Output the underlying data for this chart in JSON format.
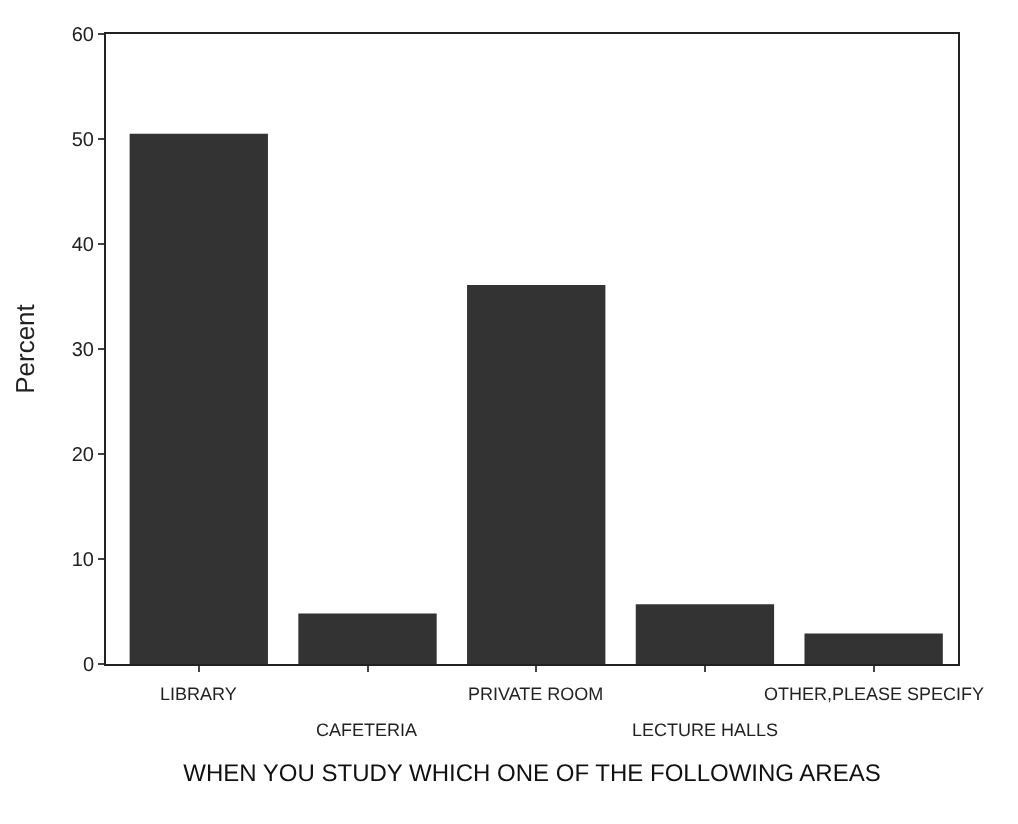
{
  "chart_data": {
    "type": "bar",
    "categories": [
      "LIBRARY",
      "CAFETERIA",
      "PRIVATE ROOM",
      "LECTURE HALLS",
      "OTHER,PLEASE SPECIFY"
    ],
    "values": [
      50.5,
      4.8,
      36.1,
      5.7,
      2.9
    ],
    "color": "#333333",
    "xlabel": "WHEN YOU STUDY WHICH ONE OF THE FOLLOWING AREAS",
    "ylabel": "Percent",
    "ylim": [
      0,
      60
    ],
    "yticks": [
      0,
      10,
      20,
      30,
      40,
      50,
      60
    ]
  }
}
